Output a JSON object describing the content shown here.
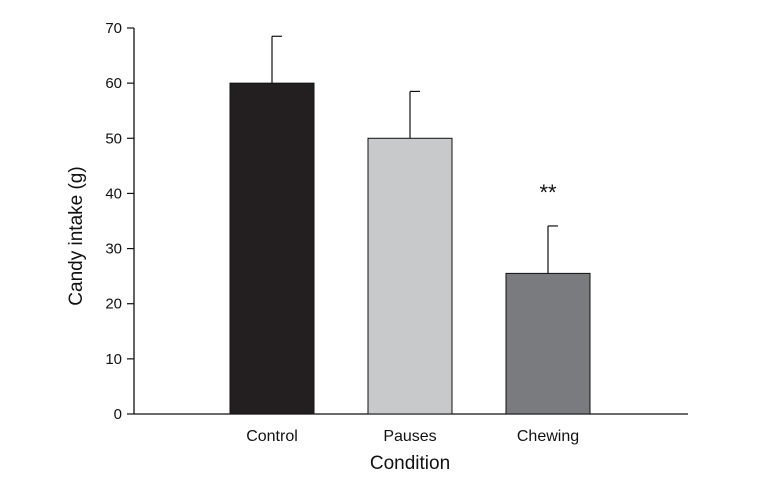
{
  "chart_data": {
    "type": "bar",
    "categories": [
      "Control",
      "Pauses",
      "Chewing"
    ],
    "values": [
      60,
      50,
      25.5
    ],
    "error": [
      8.5,
      8.5,
      8.6
    ],
    "colors": [
      "#231f20",
      "#c8c9cb",
      "#7a7b7e"
    ],
    "xlabel": "Condition",
    "ylabel": "Candy intake (g)",
    "ylim": [
      0,
      70
    ],
    "yticks": [
      "0",
      "10",
      "20",
      "30",
      "40",
      "50",
      "60",
      "70"
    ],
    "annotations": [
      {
        "category": "Chewing",
        "text": "**"
      }
    ],
    "grid": false,
    "legend": "none"
  }
}
